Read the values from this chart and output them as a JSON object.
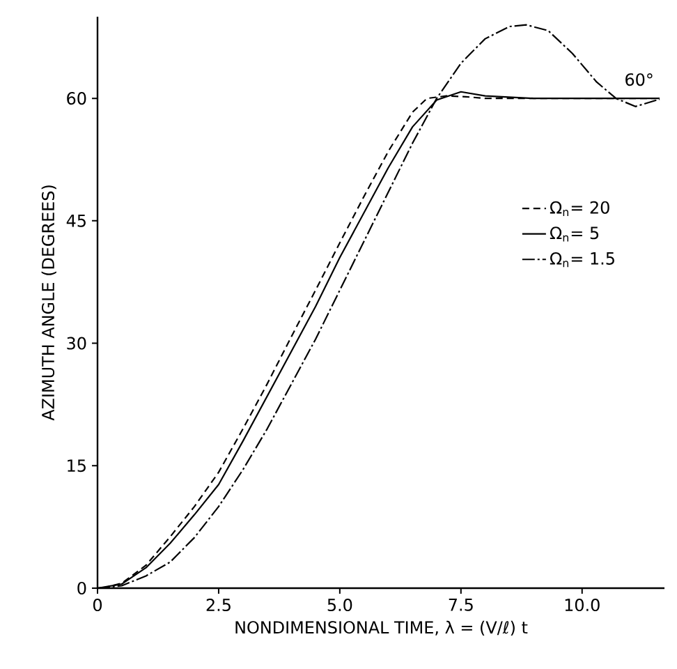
{
  "chart_data": {
    "type": "line",
    "xlabel": "NONDIMENSIONAL TIME,  λ = (V/ℓ) t",
    "ylabel": "AZIMUTH ANGLE (DEGREES)",
    "xlim": [
      0,
      11.7
    ],
    "ylim": [
      0,
      70
    ],
    "xticks": [
      0,
      2.5,
      {
        "value": 5,
        "label": "5.0"
      },
      7.5,
      {
        "value": 10,
        "label": "10.0"
      }
    ],
    "yticks": [
      0,
      15,
      30,
      45,
      60
    ],
    "grid": false,
    "legend": "right",
    "annotations": [
      "60°"
    ],
    "series": [
      {
        "name": "Ω$_{n}$= 20",
        "color": "#000000",
        "line_style": "dashed",
        "x": [
          0.1,
          0.5,
          1,
          1.5,
          2,
          2.5,
          3,
          3.5,
          4,
          4.5,
          5,
          5.5,
          6,
          6.5,
          6.8,
          7.2,
          7.6,
          8,
          11.5
        ],
        "values": [
          0,
          0.6,
          2.8,
          6.3,
          10,
          14.2,
          19.5,
          25,
          30.8,
          36.5,
          42.3,
          48,
          53.5,
          58.3,
          60,
          60.3,
          60.2,
          60,
          60
        ]
      },
      {
        "name": "Ω$_{n}$= 5",
        "color": "#000000",
        "line_style": "solid",
        "x": [
          0,
          0.5,
          1,
          1.5,
          2,
          2.5,
          3,
          3.5,
          4,
          4.5,
          5,
          5.5,
          6,
          6.5,
          7,
          7.5,
          8,
          9,
          11.6
        ],
        "values": [
          0,
          0.5,
          2.5,
          5.5,
          9,
          12.7,
          18,
          23.5,
          29,
          34.5,
          40.5,
          46,
          51.5,
          56.5,
          59.8,
          60.8,
          60.3,
          60,
          60
        ]
      },
      {
        "name": "Ω$_{n}$= 1.5",
        "color": "#000000",
        "line_style": "dashdot",
        "x": [
          0,
          0.5,
          1,
          1.5,
          2,
          2.5,
          3,
          3.5,
          4,
          4.5,
          5,
          5.5,
          6,
          6.5,
          7,
          7.5,
          8,
          8.5,
          8.85,
          9.3,
          9.8,
          10.3,
          10.7,
          11.1,
          11.6
        ],
        "values": [
          0,
          0.3,
          1.5,
          3.2,
          6.2,
          10,
          14.5,
          19.5,
          25,
          30.5,
          36.5,
          42.5,
          48.5,
          54.5,
          60,
          64.3,
          67.3,
          68.8,
          69,
          68.3,
          65.5,
          62,
          60,
          59,
          59.9
        ]
      }
    ]
  }
}
